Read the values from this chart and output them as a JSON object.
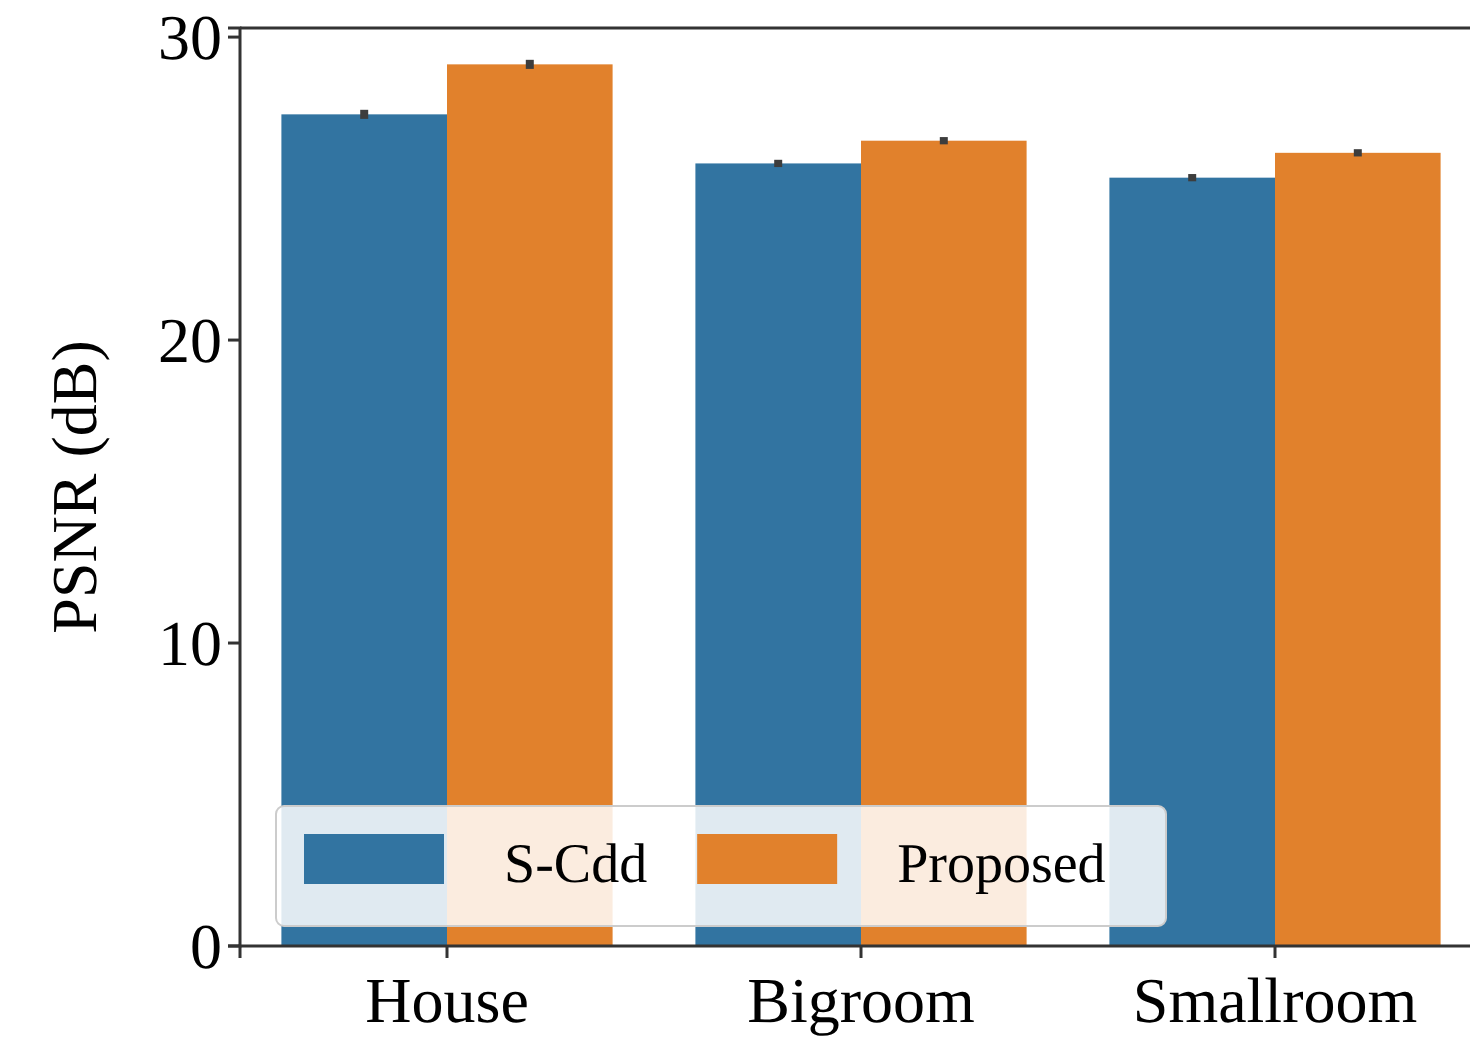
{
  "chart_data": {
    "type": "bar",
    "ylabel": "PSNR (dB)",
    "categories": [
      "House",
      "Bigroom",
      "Smallroom"
    ],
    "series": [
      {
        "name": "S-Cdd",
        "color": "#3274a1",
        "values": [
          27.45,
          25.83,
          25.36
        ],
        "errors": [
          0.15,
          0.12,
          0.12
        ]
      },
      {
        "name": "Proposed",
        "color": "#e1812c",
        "values": [
          29.1,
          26.58,
          26.18
        ],
        "errors": [
          0.15,
          0.12,
          0.12
        ]
      }
    ],
    "ylim": [
      0,
      30.3
    ],
    "yticks": [
      0,
      10,
      20,
      30
    ],
    "grid": false,
    "legend": "bottom left"
  }
}
